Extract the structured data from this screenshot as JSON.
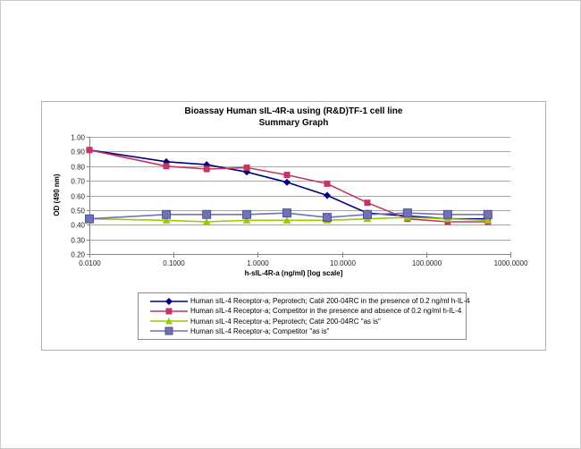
{
  "window": {
    "background": "#ffffff",
    "frame_border_color": "#c9c9c9",
    "figure_border_color": "#b0b0b0"
  },
  "chart_data": {
    "type": "line",
    "title": "Bioassay Human sIL-4R-a using (R&D)TF-1 cell line",
    "subtitle": "Summary Graph",
    "xlabel": "h-sIL-4R-a (ng/ml) [log scale]",
    "ylabel": "OD (490 nm)",
    "x_scale": "log",
    "xlim": [
      0.01,
      1000
    ],
    "ylim": [
      0.2,
      1.0
    ],
    "grid": "horizontal",
    "gridline_color": "#a6a6a6",
    "axis_color": "#808080",
    "legend_position": "bottom-center",
    "x_tick_values": [
      0.01,
      0.1,
      1,
      10,
      100,
      1000
    ],
    "x_tick_labels": [
      "0.0100",
      "0.1000",
      "1.0000",
      "10.0000",
      "100.0000",
      "1000.0000"
    ],
    "y_tick_values": [
      1.0,
      0.9,
      0.8,
      0.7,
      0.6,
      0.5,
      0.4,
      0.3,
      0.2
    ],
    "y_tick_labels": [
      "1.00",
      "0.90",
      "0.80",
      "0.70",
      "0.60",
      "0.50",
      "0.40",
      "0.30",
      "0.20"
    ],
    "x": [
      0.01,
      0.082,
      0.247,
      0.74,
      2.22,
      6.67,
      20,
      60,
      180,
      540
    ],
    "series": [
      {
        "name": "Human sIL-4 Receptor-a; Peprotech; Cat# 200-04RC in the presence of 0.2 ng/ml h-IL-4",
        "color": "#000080",
        "marker": "diamond",
        "values": [
          0.91,
          0.83,
          0.81,
          0.76,
          0.69,
          0.6,
          0.48,
          0.46,
          0.44,
          0.44
        ]
      },
      {
        "name": "Human sIL-4 Receptor-a; Competitor in the presence and absence of 0.2 ng/ml h-IL-4",
        "color": "#C23565",
        "marker": "square",
        "values": [
          0.91,
          0.8,
          0.78,
          0.79,
          0.74,
          0.68,
          0.55,
          0.44,
          0.42,
          0.42
        ]
      },
      {
        "name": "Human sIL-4 Receptor-a; Peprotech; Cat# 200-04RC \"as is\"",
        "color": "#99CC00",
        "marker": "triangle",
        "values": [
          0.44,
          0.43,
          0.42,
          0.43,
          0.43,
          0.43,
          0.44,
          0.45,
          0.44,
          0.43
        ]
      },
      {
        "name": "Human sIL-4 Receptor-a; Competitor \"as is\"",
        "color": "#7171B5",
        "stroke": "#50509A",
        "marker": "square-large",
        "values": [
          0.44,
          0.47,
          0.47,
          0.47,
          0.48,
          0.45,
          0.47,
          0.48,
          0.47,
          0.47
        ]
      }
    ]
  }
}
